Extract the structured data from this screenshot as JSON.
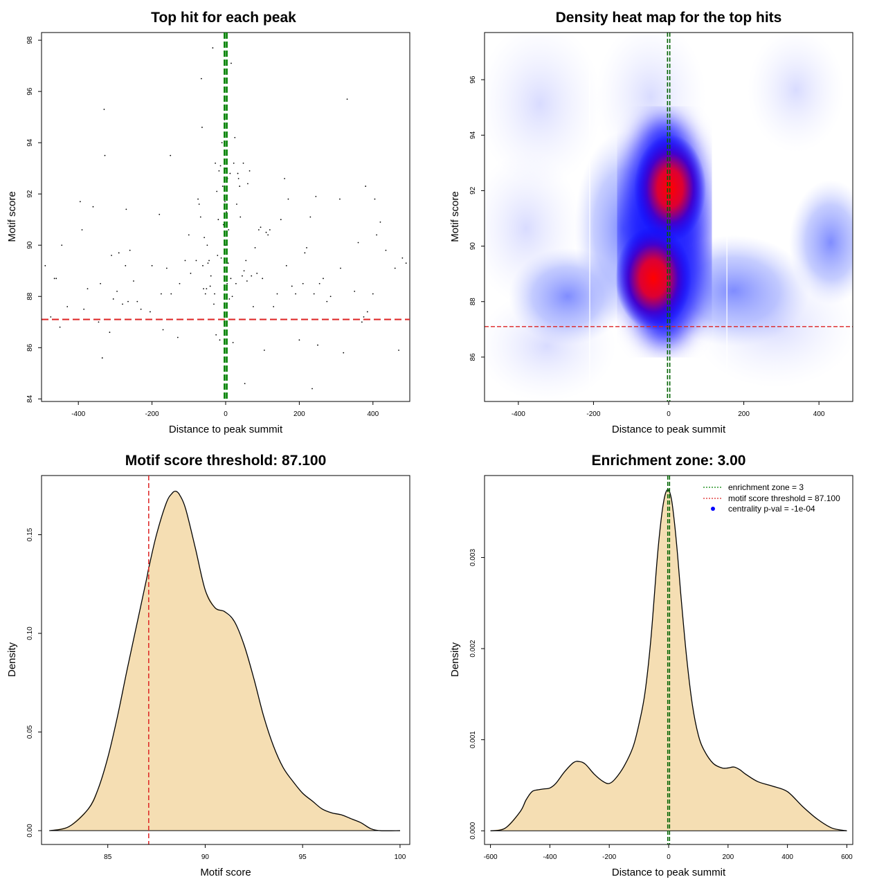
{
  "chart_data": [
    {
      "id": "scatter",
      "type": "scatter",
      "title": "Top hit for each peak",
      "xlabel": "Distance to peak summit",
      "ylabel": "Motif score",
      "xlim": [
        -500,
        500
      ],
      "ylim": [
        83.9,
        98.3
      ],
      "xticks": [
        -400,
        -200,
        0,
        200,
        400
      ],
      "yticks": [
        84,
        86,
        88,
        90,
        92,
        94,
        96,
        98
      ],
      "xtick_labels": [
        "-400",
        "-200",
        "0",
        "200",
        "400"
      ],
      "ytick_labels": [
        "84",
        "86",
        "88",
        "90",
        "92",
        "94",
        "96",
        "98"
      ],
      "vlines": [
        {
          "x": -3,
          "color": "#008000"
        },
        {
          "x": 3,
          "color": "#008000"
        }
      ],
      "hline": {
        "y": 87.1,
        "color": "#dd2222"
      },
      "points": [
        [
          -490,
          89.2
        ],
        [
          -475,
          87.2
        ],
        [
          -465,
          88.7
        ],
        [
          -460,
          88.7
        ],
        [
          -450,
          86.8
        ],
        [
          -445,
          90.0
        ],
        [
          -430,
          87.6
        ],
        [
          -395,
          91.7
        ],
        [
          -390,
          90.6
        ],
        [
          -385,
          87.5
        ],
        [
          -375,
          88.3
        ],
        [
          -360,
          91.5
        ],
        [
          -345,
          87.0
        ],
        [
          -340,
          88.5
        ],
        [
          -335,
          85.6
        ],
        [
          -330,
          95.3
        ],
        [
          -328,
          93.5
        ],
        [
          -315,
          86.6
        ],
        [
          -310,
          89.6
        ],
        [
          -305,
          87.9
        ],
        [
          -295,
          88.2
        ],
        [
          -290,
          89.7
        ],
        [
          -280,
          87.7
        ],
        [
          -272,
          89.2
        ],
        [
          -270,
          91.4
        ],
        [
          -265,
          87.8
        ],
        [
          -260,
          89.8
        ],
        [
          -250,
          88.6
        ],
        [
          -240,
          87.8
        ],
        [
          -230,
          87.5
        ],
        [
          -205,
          87.4
        ],
        [
          -200,
          89.2
        ],
        [
          -180,
          91.2
        ],
        [
          -175,
          88.1
        ],
        [
          -170,
          86.7
        ],
        [
          -160,
          89.1
        ],
        [
          -150,
          93.5
        ],
        [
          -148,
          88.1
        ],
        [
          -130,
          86.4
        ],
        [
          -125,
          88.5
        ],
        [
          -110,
          89.4
        ],
        [
          -100,
          90.4
        ],
        [
          -95,
          88.9
        ],
        [
          -80,
          89.4
        ],
        [
          -75,
          91.8
        ],
        [
          -72,
          91.6
        ],
        [
          -68,
          91.1
        ],
        [
          -66,
          96.5
        ],
        [
          -64,
          94.6
        ],
        [
          -62,
          89.2
        ],
        [
          -60,
          88.3
        ],
        [
          -58,
          90.3
        ],
        [
          -55,
          88.1
        ],
        [
          -52,
          88.3
        ],
        [
          -50,
          90.0
        ],
        [
          -48,
          89.3
        ],
        [
          -45,
          89.4
        ],
        [
          -42,
          88.4
        ],
        [
          -40,
          88.8
        ],
        [
          -35,
          97.7
        ],
        [
          -32,
          87.7
        ],
        [
          -30,
          88.1
        ],
        [
          -28,
          93.2
        ],
        [
          -26,
          86.5
        ],
        [
          -24,
          92.1
        ],
        [
          -22,
          89.6
        ],
        [
          -20,
          91.0
        ],
        [
          -18,
          92.9
        ],
        [
          -16,
          86.3
        ],
        [
          -14,
          93.1
        ],
        [
          -12,
          89.5
        ],
        [
          -10,
          94.0
        ],
        [
          -8,
          92.3
        ],
        [
          -6,
          90.8
        ],
        [
          -4,
          88.8
        ],
        [
          -3,
          94.9
        ],
        [
          -2,
          91.7
        ],
        [
          -1,
          90.0
        ],
        [
          1,
          93.0
        ],
        [
          2,
          91.3
        ],
        [
          4,
          88.5
        ],
        [
          5,
          92.6
        ],
        [
          7,
          89.3
        ],
        [
          8,
          90.6
        ],
        [
          10,
          87.9
        ],
        [
          12,
          92.8
        ],
        [
          14,
          88.7
        ],
        [
          15,
          97.1
        ],
        [
          18,
          88.0
        ],
        [
          20,
          86.2
        ],
        [
          22,
          93.2
        ],
        [
          25,
          94.2
        ],
        [
          28,
          88.5
        ],
        [
          30,
          91.6
        ],
        [
          33,
          92.8
        ],
        [
          35,
          92.6
        ],
        [
          38,
          92.3
        ],
        [
          40,
          91.1
        ],
        [
          45,
          88.8
        ],
        [
          48,
          93.2
        ],
        [
          50,
          89.0
        ],
        [
          52,
          84.6
        ],
        [
          55,
          89.4
        ],
        [
          58,
          88.6
        ],
        [
          60,
          92.4
        ],
        [
          65,
          92.9
        ],
        [
          70,
          88.8
        ],
        [
          75,
          87.6
        ],
        [
          80,
          89.9
        ],
        [
          85,
          88.9
        ],
        [
          90,
          90.6
        ],
        [
          95,
          90.7
        ],
        [
          100,
          88.7
        ],
        [
          105,
          85.9
        ],
        [
          110,
          90.5
        ],
        [
          115,
          90.4
        ],
        [
          120,
          90.6
        ],
        [
          130,
          87.6
        ],
        [
          140,
          88.1
        ],
        [
          150,
          91.0
        ],
        [
          160,
          92.6
        ],
        [
          165,
          89.2
        ],
        [
          170,
          91.8
        ],
        [
          180,
          88.4
        ],
        [
          190,
          88.1
        ],
        [
          200,
          86.3
        ],
        [
          210,
          88.5
        ],
        [
          215,
          89.7
        ],
        [
          220,
          89.9
        ],
        [
          230,
          91.1
        ],
        [
          235,
          84.4
        ],
        [
          240,
          88.1
        ],
        [
          245,
          91.9
        ],
        [
          250,
          86.1
        ],
        [
          255,
          88.5
        ],
        [
          265,
          88.7
        ],
        [
          275,
          87.8
        ],
        [
          285,
          88.0
        ],
        [
          310,
          91.8
        ],
        [
          312,
          89.1
        ],
        [
          320,
          85.8
        ],
        [
          330,
          95.7
        ],
        [
          350,
          88.2
        ],
        [
          360,
          90.1
        ],
        [
          370,
          87.0
        ],
        [
          375,
          87.2
        ],
        [
          380,
          92.3
        ],
        [
          385,
          87.4
        ],
        [
          400,
          88.1
        ],
        [
          405,
          91.8
        ],
        [
          410,
          90.4
        ],
        [
          420,
          90.9
        ],
        [
          435,
          89.8
        ],
        [
          460,
          89.1
        ],
        [
          470,
          85.9
        ],
        [
          480,
          89.5
        ],
        [
          490,
          89.3
        ]
      ]
    },
    {
      "id": "heatmap",
      "type": "heatmap",
      "title": "Density heat map for the top hits",
      "xlabel": "Distance to peak summit",
      "ylabel": "Motif score",
      "xlim": [
        -490,
        490
      ],
      "ylim": [
        84.4,
        97.7
      ],
      "xticks": [
        -400,
        -200,
        0,
        200,
        400
      ],
      "yticks": [
        86,
        88,
        90,
        92,
        94,
        96
      ],
      "xtick_labels": [
        "-400",
        "-200",
        "0",
        "200",
        "400"
      ],
      "ytick_labels": [
        "86",
        "88",
        "90",
        "92",
        "94",
        "96"
      ],
      "vlines": [
        {
          "x": -3,
          "color": "#006400"
        },
        {
          "x": 3,
          "color": "#006400"
        }
      ],
      "hline": {
        "y": 87.1,
        "color": "#dd2222"
      },
      "colormap": [
        "#ffffff",
        "#0000ff",
        "#ff0000"
      ],
      "density_peaks": [
        {
          "x": 0,
          "y": 92.0,
          "intensity": "high"
        },
        {
          "x": -30,
          "y": 88.7,
          "intensity": "high"
        },
        {
          "x": -270,
          "y": 88.2,
          "intensity": "medium"
        },
        {
          "x": 180,
          "y": 88.3,
          "intensity": "medium"
        },
        {
          "x": -320,
          "y": 95.3,
          "intensity": "low"
        },
        {
          "x": 330,
          "y": 95.9,
          "intensity": "low"
        }
      ],
      "white_vlines": [
        -210,
        155
      ]
    },
    {
      "id": "score-density",
      "type": "area",
      "title": "Motif score threshold: 87.100",
      "xlabel": "Motif score",
      "ylabel": "Density",
      "xlim": [
        81.6,
        100.5
      ],
      "ylim": [
        -0.007,
        0.18
      ],
      "xticks": [
        85,
        90,
        95,
        100
      ],
      "yticks": [
        0.0,
        0.05,
        0.1,
        0.15
      ],
      "xtick_labels": [
        "85",
        "90",
        "95",
        "100"
      ],
      "ytick_labels": [
        "0.00",
        "0.05",
        "0.10",
        "0.15"
      ],
      "fill_color": "#f5deb3",
      "vline": {
        "x": 87.1,
        "color": "#dd2222"
      },
      "x": [
        82.0,
        83.0,
        84.0,
        84.5,
        85.0,
        85.5,
        86.0,
        86.5,
        87.0,
        87.1,
        87.5,
        88.0,
        88.3,
        88.5,
        88.7,
        89.0,
        89.5,
        90.0,
        90.5,
        91.0,
        91.5,
        92.0,
        92.5,
        93.0,
        93.5,
        94.0,
        94.5,
        95.0,
        95.5,
        96.0,
        96.5,
        97.0,
        97.5,
        98.0,
        98.5,
        99.0,
        100.0
      ],
      "values": [
        0.0,
        0.002,
        0.011,
        0.021,
        0.037,
        0.058,
        0.082,
        0.105,
        0.128,
        0.133,
        0.15,
        0.166,
        0.171,
        0.172,
        0.17,
        0.163,
        0.143,
        0.122,
        0.113,
        0.111,
        0.106,
        0.094,
        0.077,
        0.058,
        0.043,
        0.032,
        0.025,
        0.019,
        0.015,
        0.011,
        0.009,
        0.008,
        0.006,
        0.004,
        0.001,
        0.0,
        0.0
      ]
    },
    {
      "id": "distance-density",
      "type": "area",
      "title": "Enrichment zone: 3.00",
      "xlabel": "Distance to peak summit",
      "ylabel": "Density",
      "xlim": [
        -620,
        620
      ],
      "ylim": [
        -0.00015,
        0.0039
      ],
      "xticks": [
        -600,
        -400,
        -200,
        0,
        200,
        400,
        600
      ],
      "yticks": [
        0.0,
        0.001,
        0.002,
        0.003
      ],
      "xtick_labels": [
        "-600",
        "-400",
        "-200",
        "0",
        "200",
        "400",
        "600"
      ],
      "ytick_labels": [
        "0.000",
        "0.001",
        "0.002",
        "0.003"
      ],
      "fill_color": "#f5deb3",
      "vlines": [
        {
          "x": -3,
          "color": "#006400"
        },
        {
          "x": 3,
          "color": "#006400"
        }
      ],
      "x": [
        -600,
        -550,
        -500,
        -480,
        -460,
        -440,
        -420,
        -400,
        -380,
        -350,
        -320,
        -300,
        -280,
        -250,
        -220,
        -200,
        -180,
        -150,
        -120,
        -100,
        -80,
        -60,
        -40,
        -30,
        -20,
        -10,
        0,
        10,
        20,
        30,
        40,
        60,
        80,
        100,
        120,
        150,
        180,
        200,
        220,
        240,
        260,
        300,
        350,
        400,
        450,
        500,
        550,
        600
      ],
      "values": [
        0.0,
        3e-05,
        0.00021,
        0.00034,
        0.00043,
        0.00045,
        0.00046,
        0.00047,
        0.00052,
        0.00065,
        0.00075,
        0.00076,
        0.00073,
        0.00062,
        0.00054,
        0.00052,
        0.00057,
        0.00071,
        0.00092,
        0.00117,
        0.00151,
        0.0021,
        0.00293,
        0.00328,
        0.00355,
        0.00371,
        0.00374,
        0.00363,
        0.00337,
        0.00303,
        0.00263,
        0.00192,
        0.00138,
        0.00105,
        0.00088,
        0.00074,
        0.00069,
        0.00069,
        0.0007,
        0.00067,
        0.00062,
        0.00054,
        0.00049,
        0.00043,
        0.00027,
        0.00013,
        3e-05,
        0.0
      ],
      "legend": [
        {
          "label": "enrichment zone = 3",
          "symbol": "dotted-line",
          "color": "#008000"
        },
        {
          "label": "motif score threshold = 87.100",
          "symbol": "dotted-line",
          "color": "#dd2222"
        },
        {
          "label": "centrality p-val = -1e-04",
          "symbol": "dot",
          "color": "#0000ff"
        }
      ]
    }
  ]
}
